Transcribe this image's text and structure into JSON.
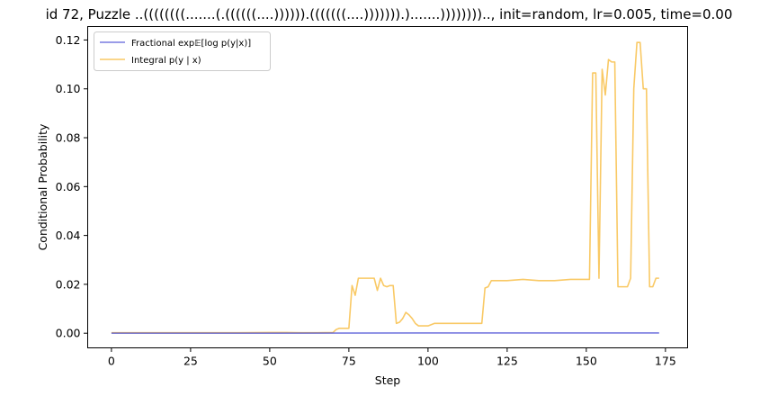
{
  "chart_data": {
    "type": "line",
    "title": "id 72, Puzzle ..((((((((.......(.((((((....)))))).(((((((....))))))).).......))))))))..,  init=random, lr=0.005, time=0.00",
    "xlabel": "Step",
    "ylabel": "Conditional Probability",
    "xlim": [
      -7.5,
      182
    ],
    "ylim": [
      -0.006,
      0.1255
    ],
    "xticks": [
      0,
      25,
      50,
      75,
      100,
      125,
      150,
      175
    ],
    "yticks": [
      0.0,
      0.02,
      0.04,
      0.06,
      0.08,
      0.1,
      0.12
    ],
    "xtick_labels": [
      "0",
      "25",
      "50",
      "75",
      "100",
      "125",
      "150",
      "175"
    ],
    "ytick_labels": [
      "0.00",
      "0.02",
      "0.04",
      "0.06",
      "0.08",
      "0.10",
      "0.12"
    ],
    "grid": false,
    "legend_position": "top-left",
    "series": [
      {
        "name": "Fractional exp𝔼[log p(y|x)]",
        "color": "#4b50d6",
        "points": [
          [
            0,
            0.0
          ],
          [
            50,
            0.0
          ],
          [
            100,
            0.0001
          ],
          [
            150,
            0.0001
          ],
          [
            173,
            0.0001
          ]
        ]
      },
      {
        "name": "Integral p(y | x)",
        "color": "#f7b731",
        "points": [
          [
            0,
            0.0002
          ],
          [
            10,
            0.0002
          ],
          [
            20,
            0.0002
          ],
          [
            30,
            0.0002
          ],
          [
            40,
            0.0002
          ],
          [
            50,
            0.0003
          ],
          [
            55,
            0.0003
          ],
          [
            60,
            0.0002
          ],
          [
            65,
            0.0002
          ],
          [
            70,
            0.0003
          ],
          [
            71,
            0.0015
          ],
          [
            72,
            0.002
          ],
          [
            75,
            0.002
          ],
          [
            76,
            0.0195
          ],
          [
            77,
            0.0155
          ],
          [
            78,
            0.0225
          ],
          [
            82,
            0.0225
          ],
          [
            83,
            0.0225
          ],
          [
            84,
            0.0175
          ],
          [
            85,
            0.0225
          ],
          [
            86,
            0.0195
          ],
          [
            87,
            0.019
          ],
          [
            88,
            0.0195
          ],
          [
            89,
            0.0195
          ],
          [
            90,
            0.004
          ],
          [
            91,
            0.0045
          ],
          [
            92,
            0.006
          ],
          [
            93,
            0.0085
          ],
          [
            94,
            0.0075
          ],
          [
            95,
            0.006
          ],
          [
            96,
            0.004
          ],
          [
            97,
            0.003
          ],
          [
            98,
            0.003
          ],
          [
            100,
            0.003
          ],
          [
            101,
            0.0035
          ],
          [
            102,
            0.004
          ],
          [
            105,
            0.004
          ],
          [
            110,
            0.004
          ],
          [
            117,
            0.004
          ],
          [
            118,
            0.0185
          ],
          [
            119,
            0.019
          ],
          [
            120,
            0.0215
          ],
          [
            125,
            0.0215
          ],
          [
            130,
            0.022
          ],
          [
            135,
            0.0215
          ],
          [
            140,
            0.0215
          ],
          [
            145,
            0.022
          ],
          [
            150,
            0.022
          ],
          [
            151,
            0.022
          ],
          [
            152,
            0.1065
          ],
          [
            153,
            0.1065
          ],
          [
            154,
            0.0225
          ],
          [
            155,
            0.108
          ],
          [
            156,
            0.0975
          ],
          [
            157,
            0.112
          ],
          [
            158,
            0.111
          ],
          [
            159,
            0.111
          ],
          [
            160,
            0.019
          ],
          [
            161,
            0.019
          ],
          [
            163,
            0.019
          ],
          [
            164,
            0.0225
          ],
          [
            165,
            0.1
          ],
          [
            166,
            0.119
          ],
          [
            167,
            0.119
          ],
          [
            168,
            0.1
          ],
          [
            169,
            0.1
          ],
          [
            170,
            0.019
          ],
          [
            171,
            0.019
          ],
          [
            172,
            0.0225
          ],
          [
            173,
            0.0225
          ]
        ]
      }
    ]
  }
}
